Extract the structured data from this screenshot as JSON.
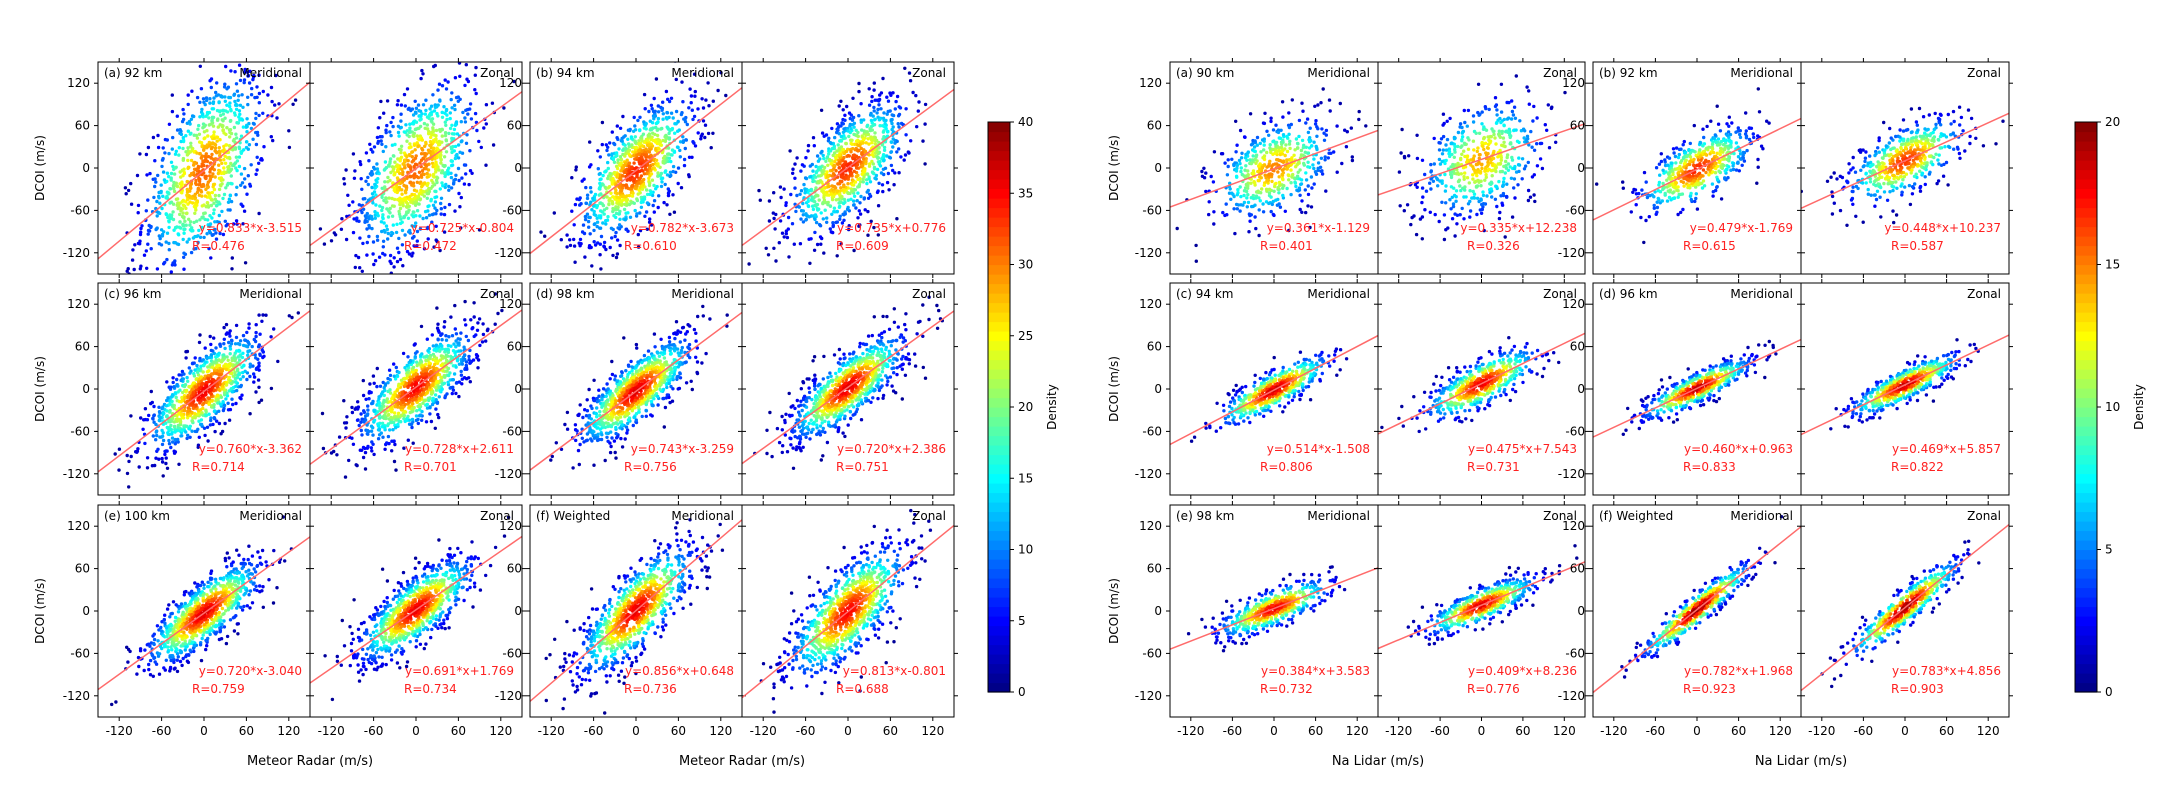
{
  "figures": [
    {
      "xlabel": "Meteor Radar (m/s)",
      "ylabel": "DCOI (m/s)",
      "colorbar": {
        "label": "Density",
        "ticks": [
          0,
          5,
          10,
          15,
          20,
          25,
          30,
          35,
          40
        ],
        "range": [
          0,
          40
        ]
      }
    },
    {
      "xlabel": "Na Lidar (m/s)",
      "ylabel": "DCOI (m/s)",
      "colorbar": {
        "label": "Density",
        "ticks": [
          0,
          5,
          10,
          15,
          20
        ],
        "range": [
          0,
          20
        ]
      }
    }
  ],
  "chart_data": [
    {
      "type": "scatter",
      "figure": 1,
      "xlabel": "Meteor Radar (m/s)",
      "ylabel": "DCOI (m/s)",
      "xlim": [
        -150,
        150
      ],
      "ylim": [
        -150,
        150
      ],
      "xticks": [
        -120,
        -60,
        0,
        60,
        120
      ],
      "yticks": [
        -120,
        -60,
        0,
        60,
        120
      ],
      "colorbar": {
        "label": "Density",
        "range": [
          0,
          40
        ]
      },
      "panels": [
        {
          "label": "(a) 92 km",
          "component": "Meridional",
          "equation": "y=0.833*x-3.515",
          "r_text": "R=0.476",
          "slope": 0.833,
          "intercept": -3.515,
          "r": 0.476
        },
        {
          "label": "",
          "component": "Zonal",
          "equation": "y=0.725*x-0.804",
          "r_text": "R=0.472",
          "slope": 0.725,
          "intercept": -0.804,
          "r": 0.472
        },
        {
          "label": "(b) 94 km",
          "component": "Meridional",
          "equation": "y=0.782*x-3.673",
          "r_text": "R=0.610",
          "slope": 0.782,
          "intercept": -3.673,
          "r": 0.61
        },
        {
          "label": "",
          "component": "Zonal",
          "equation": "y=0.735*x+0.776",
          "r_text": "R=0.609",
          "slope": 0.735,
          "intercept": 0.776,
          "r": 0.609
        },
        {
          "label": "(c) 96 km",
          "component": "Meridional",
          "equation": "y=0.760*x-3.362",
          "r_text": "R=0.714",
          "slope": 0.76,
          "intercept": -3.362,
          "r": 0.714
        },
        {
          "label": "",
          "component": "Zonal",
          "equation": "y=0.728*x+2.611",
          "r_text": "R=0.701",
          "slope": 0.728,
          "intercept": 2.611,
          "r": 0.701
        },
        {
          "label": "(d) 98 km",
          "component": "Meridional",
          "equation": "y=0.743*x-3.259",
          "r_text": "R=0.756",
          "slope": 0.743,
          "intercept": -3.259,
          "r": 0.756
        },
        {
          "label": "",
          "component": "Zonal",
          "equation": "y=0.720*x+2.386",
          "r_text": "R=0.751",
          "slope": 0.72,
          "intercept": 2.386,
          "r": 0.751
        },
        {
          "label": "(e) 100 km",
          "component": "Meridional",
          "equation": "y=0.720*x-3.040",
          "r_text": "R=0.759",
          "slope": 0.72,
          "intercept": -3.04,
          "r": 0.759
        },
        {
          "label": "",
          "component": "Zonal",
          "equation": "y=0.691*x+1.769",
          "r_text": "R=0.734",
          "slope": 0.691,
          "intercept": 1.769,
          "r": 0.734
        },
        {
          "label": "(f) Weighted",
          "component": "Meridional",
          "equation": "y=0.856*x+0.648",
          "r_text": "R=0.736",
          "slope": 0.856,
          "intercept": 0.648,
          "r": 0.736
        },
        {
          "label": "",
          "component": "Zonal",
          "equation": "y=0.813*x-0.801",
          "r_text": "R=0.688",
          "slope": 0.813,
          "intercept": -0.801,
          "r": 0.688
        }
      ]
    },
    {
      "type": "scatter",
      "figure": 2,
      "xlabel": "Na Lidar (m/s)",
      "ylabel": "DCOI (m/s)",
      "xlim": [
        -150,
        150
      ],
      "ylim": [
        -150,
        150
      ],
      "xticks": [
        -120,
        -60,
        0,
        60,
        120
      ],
      "yticks": [
        -120,
        -60,
        0,
        60,
        120
      ],
      "colorbar": {
        "label": "Density",
        "range": [
          0,
          20
        ]
      },
      "panels": [
        {
          "label": "(a) 90 km",
          "component": "Meridional",
          "equation": "y=0.361*x-1.129",
          "r_text": "R=0.401",
          "slope": 0.361,
          "intercept": -1.129,
          "r": 0.401
        },
        {
          "label": "",
          "component": "Zonal",
          "equation": "y=0.335*x+12.238",
          "r_text": "R=0.326",
          "slope": 0.335,
          "intercept": 12.238,
          "r": 0.326
        },
        {
          "label": "(b) 92 km",
          "component": "Meridional",
          "equation": "y=0.479*x-1.769",
          "r_text": "R=0.615",
          "slope": 0.479,
          "intercept": -1.769,
          "r": 0.615
        },
        {
          "label": "",
          "component": "Zonal",
          "equation": "y=0.448*x+10.237",
          "r_text": "R=0.587",
          "slope": 0.448,
          "intercept": 10.237,
          "r": 0.587
        },
        {
          "label": "(c) 94 km",
          "component": "Meridional",
          "equation": "y=0.514*x-1.508",
          "r_text": "R=0.806",
          "slope": 0.514,
          "intercept": -1.508,
          "r": 0.806
        },
        {
          "label": "",
          "component": "Zonal",
          "equation": "y=0.475*x+7.543",
          "r_text": "R=0.731",
          "slope": 0.475,
          "intercept": 7.543,
          "r": 0.731
        },
        {
          "label": "(d) 96 km",
          "component": "Meridional",
          "equation": "y=0.460*x+0.963",
          "r_text": "R=0.833",
          "slope": 0.46,
          "intercept": 0.963,
          "r": 0.833
        },
        {
          "label": "",
          "component": "Zonal",
          "equation": "y=0.469*x+5.857",
          "r_text": "R=0.822",
          "slope": 0.469,
          "intercept": 5.857,
          "r": 0.822
        },
        {
          "label": "(e) 98 km",
          "component": "Meridional",
          "equation": "y=0.384*x+3.583",
          "r_text": "R=0.732",
          "slope": 0.384,
          "intercept": 3.583,
          "r": 0.732
        },
        {
          "label": "",
          "component": "Zonal",
          "equation": "y=0.409*x+8.236",
          "r_text": "R=0.776",
          "slope": 0.409,
          "intercept": 8.236,
          "r": 0.776
        },
        {
          "label": "(f) Weighted",
          "component": "Meridional",
          "equation": "y=0.782*x+1.968",
          "r_text": "R=0.923",
          "slope": 0.782,
          "intercept": 1.968,
          "r": 0.923
        },
        {
          "label": "",
          "component": "Zonal",
          "equation": "y=0.783*x+4.856",
          "r_text": "R=0.903",
          "slope": 0.783,
          "intercept": 4.856,
          "r": 0.903
        }
      ]
    }
  ]
}
